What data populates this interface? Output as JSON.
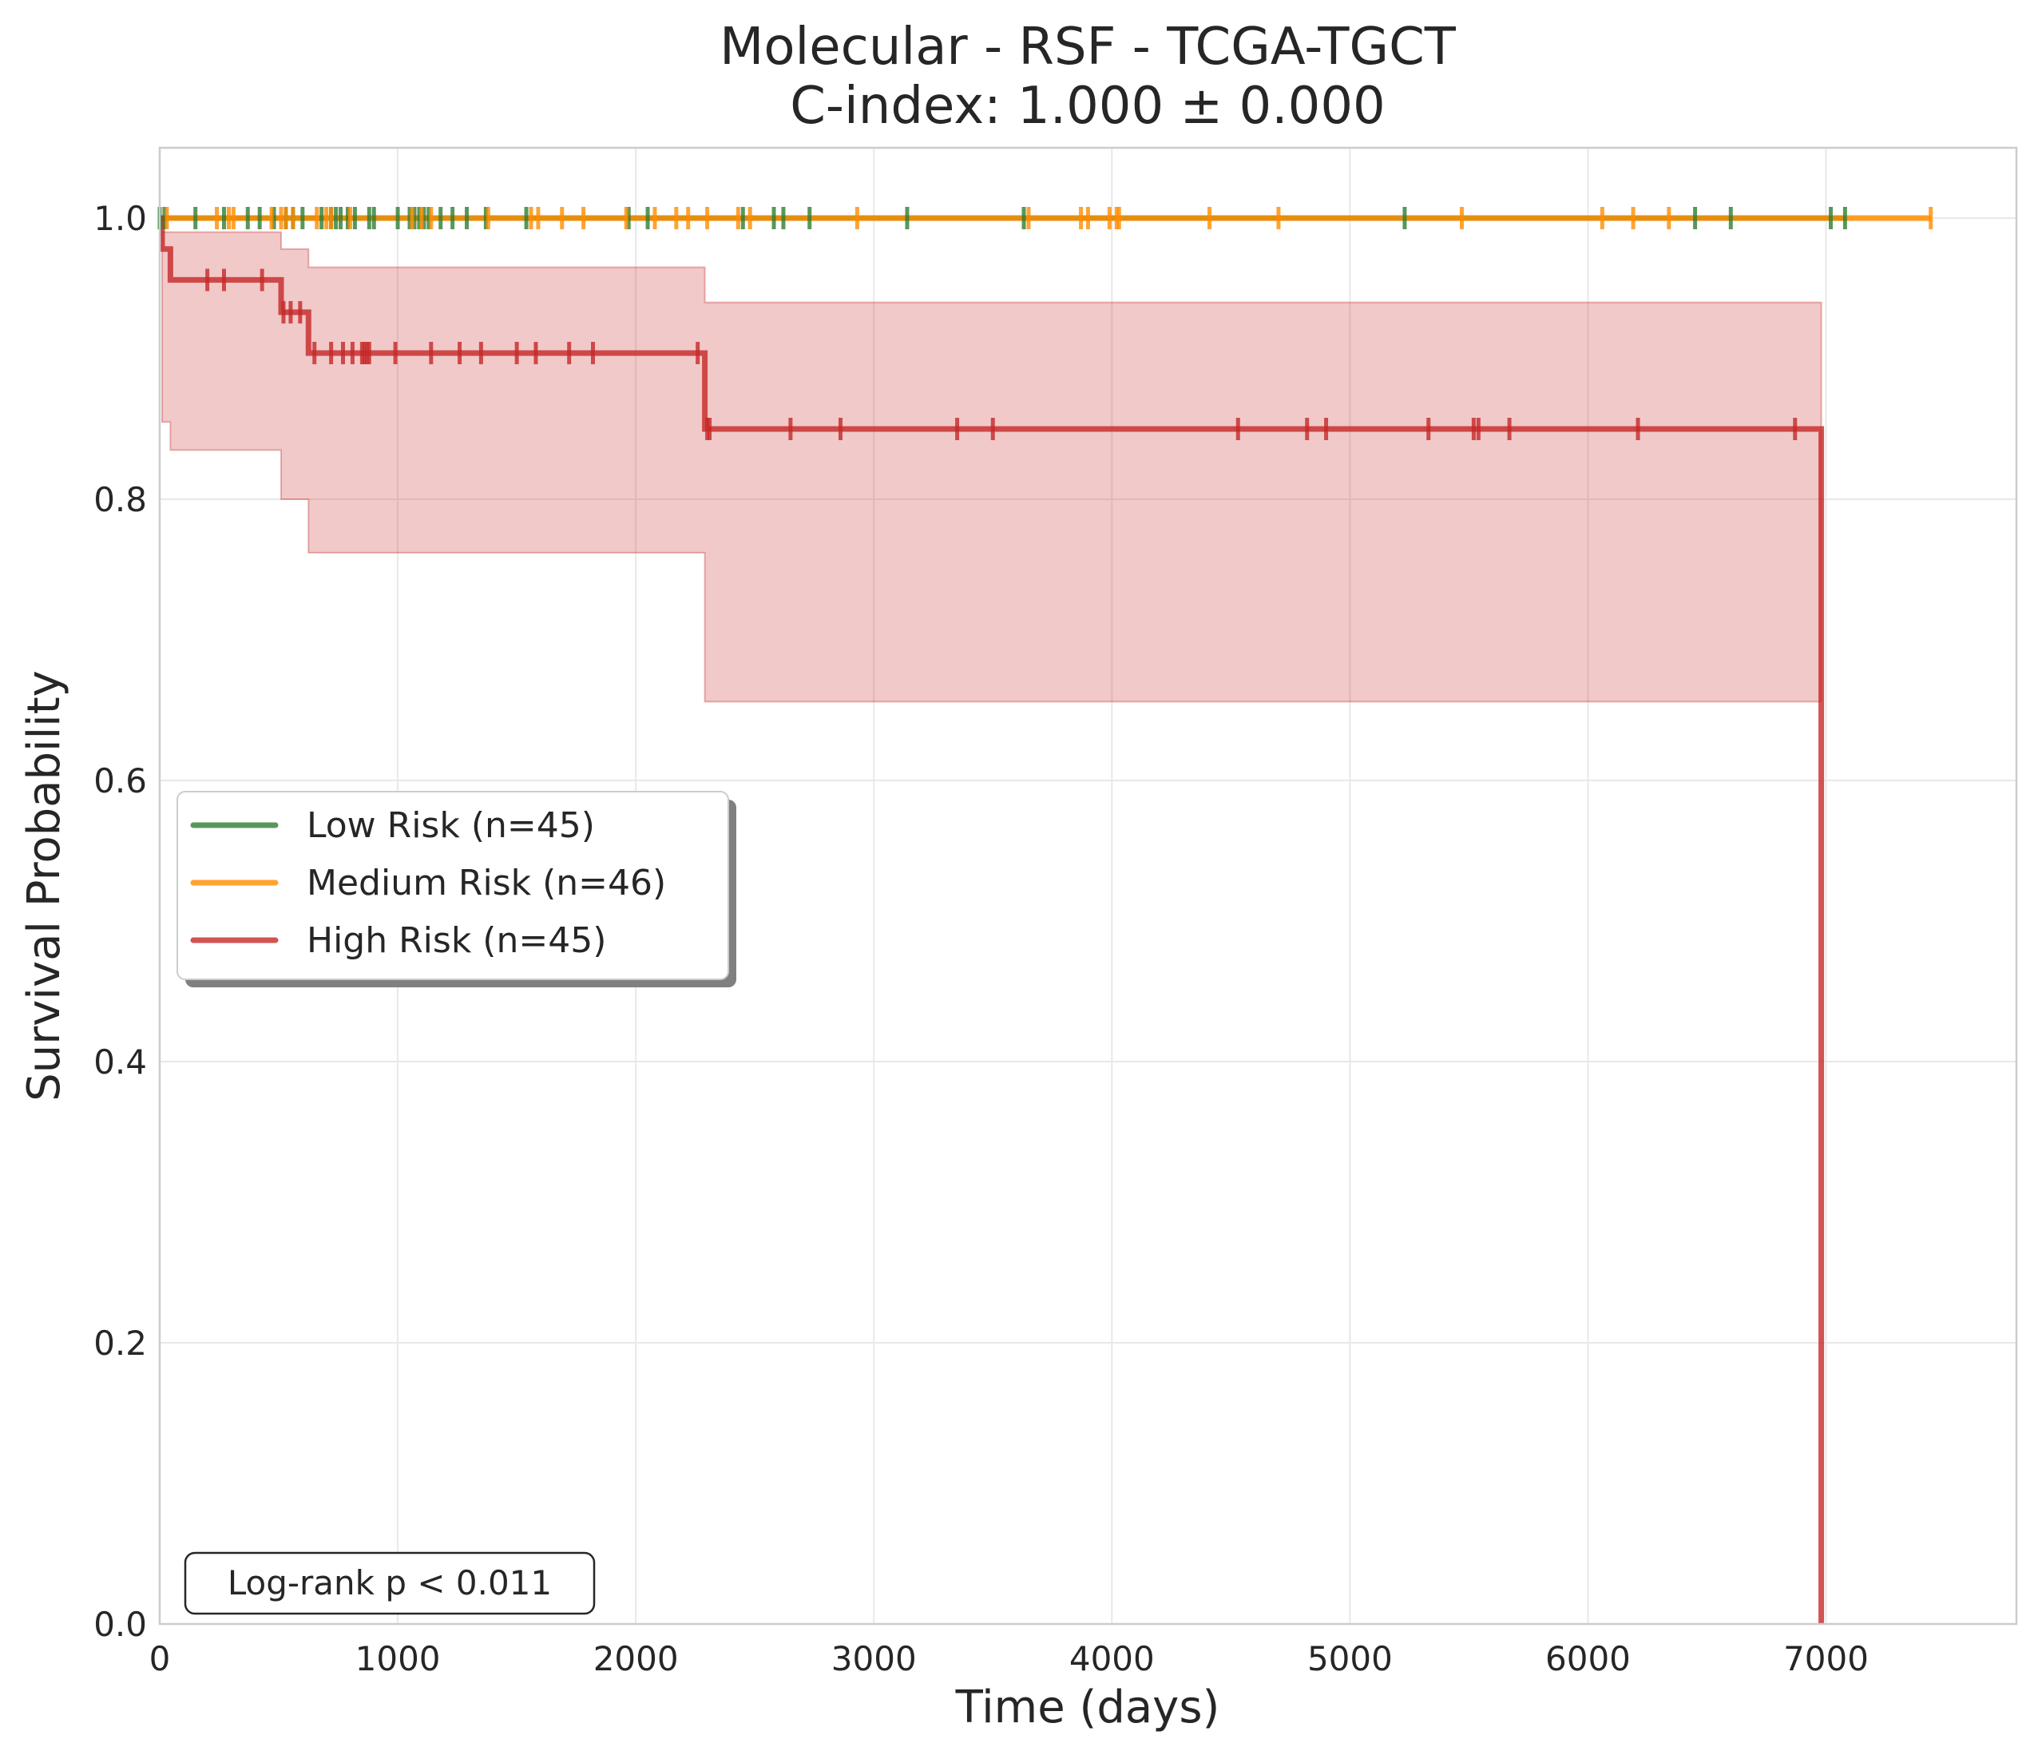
{
  "chart_data": {
    "type": "line",
    "subtype": "kaplan-meier step",
    "title": "Molecular - RSF - TCGA-TGCT",
    "subtitle": "C-index: 1.000 ± 0.000",
    "xlabel": "Time (days)",
    "ylabel": "Survival Probability",
    "xlim": [
      0,
      7800
    ],
    "ylim": [
      0,
      1.05
    ],
    "xticks": [
      0,
      1000,
      2000,
      3000,
      4000,
      5000,
      6000,
      7000
    ],
    "yticks": [
      0.0,
      0.2,
      0.4,
      0.6,
      0.8,
      1.0
    ],
    "xtick_labels": [
      "0",
      "1000",
      "2000",
      "3000",
      "4000",
      "5000",
      "6000",
      "7000"
    ],
    "ytick_labels": [
      "0.0",
      "0.2",
      "0.4",
      "0.6",
      "0.8",
      "1.0"
    ],
    "grid": true,
    "legend_position": "center-left",
    "annotation": "Log-rank p < 0.011",
    "series": [
      {
        "name": "Low Risk (n=45)",
        "color": "#2e7d32",
        "steps": [
          [
            0,
            1.0
          ],
          [
            7080,
            1.0
          ]
        ],
        "censor_times": [
          0,
          20,
          150,
          270,
          370,
          420,
          480,
          530,
          560,
          600,
          680,
          720,
          740,
          760,
          790,
          820,
          880,
          900,
          1000,
          1050,
          1070,
          1090,
          1110,
          1130,
          1180,
          1230,
          1290,
          1370,
          1540,
          1970,
          2050,
          2450,
          2580,
          2620,
          2730,
          3140,
          3630,
          5230,
          6450,
          6600,
          7020,
          7080
        ]
      },
      {
        "name": "Medium Risk (n=46)",
        "color": "#ff8c00",
        "steps": [
          [
            0,
            1.0
          ],
          [
            7440,
            1.0
          ]
        ],
        "censor_times": [
          30,
          240,
          290,
          310,
          470,
          510,
          530,
          560,
          660,
          700,
          720,
          800,
          1060,
          1100,
          1140,
          1380,
          1560,
          1590,
          1690,
          1780,
          1960,
          2080,
          2170,
          2220,
          2300,
          2430,
          2480,
          2930,
          3650,
          3870,
          3900,
          3990,
          4020,
          4030,
          4410,
          4700,
          5470,
          6060,
          6190,
          6340,
          7440
        ]
      },
      {
        "name": "High Risk (n=45)",
        "color": "#c62828",
        "steps": [
          [
            0,
            1.0
          ],
          [
            10,
            0.978
          ],
          [
            45,
            0.956
          ],
          [
            510,
            0.933
          ],
          [
            625,
            0.904
          ],
          [
            2290,
            0.85
          ],
          [
            6980,
            0.85
          ],
          [
            6980,
            0.0
          ]
        ],
        "ci": [
          [
            0,
            1.0,
            1.0
          ],
          [
            10,
            0.855,
            0.99
          ],
          [
            45,
            0.835,
            0.99
          ],
          [
            510,
            0.8,
            0.978
          ],
          [
            625,
            0.762,
            0.965
          ],
          [
            2290,
            0.656,
            0.94
          ],
          [
            6980,
            0.656,
            0.94
          ]
        ],
        "censor_times": [
          200,
          270,
          430,
          520,
          550,
          590,
          650,
          720,
          770,
          810,
          850,
          860,
          870,
          880,
          990,
          1140,
          1260,
          1350,
          1500,
          1580,
          1720,
          1820,
          2260,
          2300,
          2310,
          2650,
          2860,
          3350,
          3500,
          4530,
          4820,
          4900,
          5330,
          5520,
          5540,
          5670,
          6210,
          6870
        ]
      }
    ]
  }
}
